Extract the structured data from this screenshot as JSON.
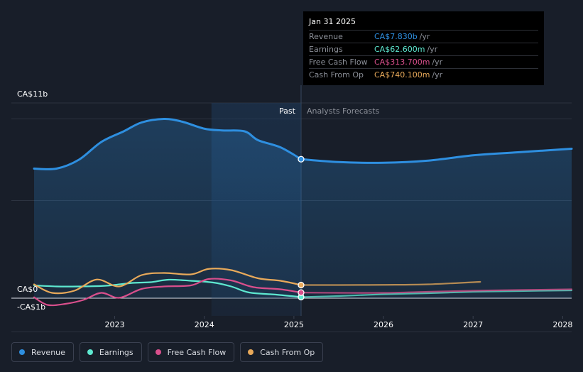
{
  "colors": {
    "revenue": "#2e8fe0",
    "earnings": "#5ee8d0",
    "free_cash_flow": "#d94f8c",
    "cash_from_op": "#e8a95a",
    "background": "#181e29",
    "past_highlight": "#1e2e44"
  },
  "tooltip": {
    "date": "Jan 31 2025",
    "rows": [
      {
        "label": "Revenue",
        "value": "CA$7.830b",
        "unit": "/yr",
        "color": "#2e8fe0"
      },
      {
        "label": "Earnings",
        "value": "CA$62.600m",
        "unit": "/yr",
        "color": "#5ee8d0"
      },
      {
        "label": "Free Cash Flow",
        "value": "CA$313.700m",
        "unit": "/yr",
        "color": "#d94f8c"
      },
      {
        "label": "Cash From Op",
        "value": "CA$740.100m",
        "unit": "/yr",
        "color": "#e8a95a"
      }
    ]
  },
  "legend": [
    {
      "label": "Revenue",
      "color": "#2e8fe0"
    },
    {
      "label": "Earnings",
      "color": "#5ee8d0"
    },
    {
      "label": "Free Cash Flow",
      "color": "#d94f8c"
    },
    {
      "label": "Cash From Op",
      "color": "#e8a95a"
    }
  ],
  "chart_data": {
    "type": "line",
    "title": "",
    "xlabel": "",
    "ylabel": "",
    "ylim": [
      -1,
      11
    ],
    "xlim": [
      2022.1,
      2028.1
    ],
    "y_axis_labels": [
      {
        "value": 11,
        "text": "CA$11b"
      },
      {
        "value": 0,
        "text": "CA$0"
      },
      {
        "value": -1,
        "text": "-CA$1b"
      }
    ],
    "x_ticks": [
      {
        "value": 2023,
        "text": "2023"
      },
      {
        "value": 2024,
        "text": "2024"
      },
      {
        "value": 2025,
        "text": "2025"
      },
      {
        "value": 2026,
        "text": "2026"
      },
      {
        "value": 2027,
        "text": "2027"
      },
      {
        "value": 2028,
        "text": "2028"
      }
    ],
    "divider": {
      "x": 2025.08,
      "past_label": "Past",
      "forecast_label": "Analysts Forecasts"
    },
    "past_highlight_range": [
      2024.08,
      2025.08
    ],
    "series": [
      {
        "name": "Revenue",
        "color": "#2e8fe0",
        "fill": true,
        "past": [
          [
            2022.1,
            7.3
          ],
          [
            2022.35,
            7.3
          ],
          [
            2022.6,
            7.8
          ],
          [
            2022.85,
            8.8
          ],
          [
            2023.1,
            9.4
          ],
          [
            2023.3,
            9.9
          ],
          [
            2023.55,
            10.1
          ],
          [
            2023.75,
            9.95
          ],
          [
            2024.0,
            9.55
          ],
          [
            2024.2,
            9.45
          ],
          [
            2024.45,
            9.4
          ],
          [
            2024.6,
            8.9
          ],
          [
            2024.85,
            8.5
          ],
          [
            2025.08,
            7.83
          ]
        ],
        "forecast": [
          [
            2025.08,
            7.83
          ],
          [
            2025.5,
            7.67
          ],
          [
            2026.0,
            7.63
          ],
          [
            2026.5,
            7.75
          ],
          [
            2027.0,
            8.05
          ],
          [
            2027.5,
            8.22
          ],
          [
            2028.1,
            8.42
          ]
        ],
        "marker_x": 2025.08
      },
      {
        "name": "Earnings",
        "color": "#5ee8d0",
        "fill": false,
        "past": [
          [
            2022.1,
            0.72
          ],
          [
            2022.35,
            0.66
          ],
          [
            2022.6,
            0.66
          ],
          [
            2022.9,
            0.7
          ],
          [
            2023.2,
            0.86
          ],
          [
            2023.4,
            0.9
          ],
          [
            2023.6,
            1.04
          ],
          [
            2023.85,
            0.98
          ],
          [
            2024.1,
            0.88
          ],
          [
            2024.3,
            0.66
          ],
          [
            2024.5,
            0.32
          ],
          [
            2024.8,
            0.2
          ],
          [
            2025.08,
            0.0626
          ]
        ],
        "forecast": [
          [
            2025.08,
            0.0626
          ],
          [
            2025.5,
            0.12
          ],
          [
            2026.0,
            0.22
          ],
          [
            2026.5,
            0.28
          ],
          [
            2027.0,
            0.36
          ],
          [
            2027.5,
            0.4
          ],
          [
            2028.1,
            0.44
          ]
        ],
        "marker_x": 2025.08
      },
      {
        "name": "Free Cash Flow",
        "color": "#d94f8c",
        "fill": false,
        "past": [
          [
            2022.1,
            0.05
          ],
          [
            2022.25,
            -0.38
          ],
          [
            2022.45,
            -0.32
          ],
          [
            2022.65,
            -0.1
          ],
          [
            2022.85,
            0.3
          ],
          [
            2023.05,
            0.02
          ],
          [
            2023.3,
            0.52
          ],
          [
            2023.55,
            0.66
          ],
          [
            2023.85,
            0.72
          ],
          [
            2024.05,
            1.08
          ],
          [
            2024.3,
            1.0
          ],
          [
            2024.55,
            0.62
          ],
          [
            2024.85,
            0.5
          ],
          [
            2025.08,
            0.3137
          ]
        ],
        "forecast": [
          [
            2025.08,
            0.3137
          ],
          [
            2025.5,
            0.3
          ],
          [
            2026.0,
            0.3
          ],
          [
            2026.5,
            0.36
          ],
          [
            2027.0,
            0.42
          ],
          [
            2027.5,
            0.46
          ],
          [
            2028.1,
            0.5
          ]
        ],
        "marker_x": 2025.08
      },
      {
        "name": "Cash From Op",
        "color": "#e8a95a",
        "fill": false,
        "past": [
          [
            2022.1,
            0.78
          ],
          [
            2022.3,
            0.3
          ],
          [
            2022.55,
            0.42
          ],
          [
            2022.8,
            1.05
          ],
          [
            2023.05,
            0.66
          ],
          [
            2023.3,
            1.3
          ],
          [
            2023.55,
            1.42
          ],
          [
            2023.85,
            1.34
          ],
          [
            2024.05,
            1.65
          ],
          [
            2024.3,
            1.58
          ],
          [
            2024.6,
            1.12
          ],
          [
            2024.85,
            0.98
          ],
          [
            2025.08,
            0.7401
          ]
        ],
        "forecast": [
          [
            2025.08,
            0.7401
          ],
          [
            2025.5,
            0.74
          ],
          [
            2026.0,
            0.75
          ],
          [
            2026.5,
            0.78
          ],
          [
            2027.08,
            0.92
          ]
        ],
        "marker_x": 2025.08
      }
    ]
  }
}
